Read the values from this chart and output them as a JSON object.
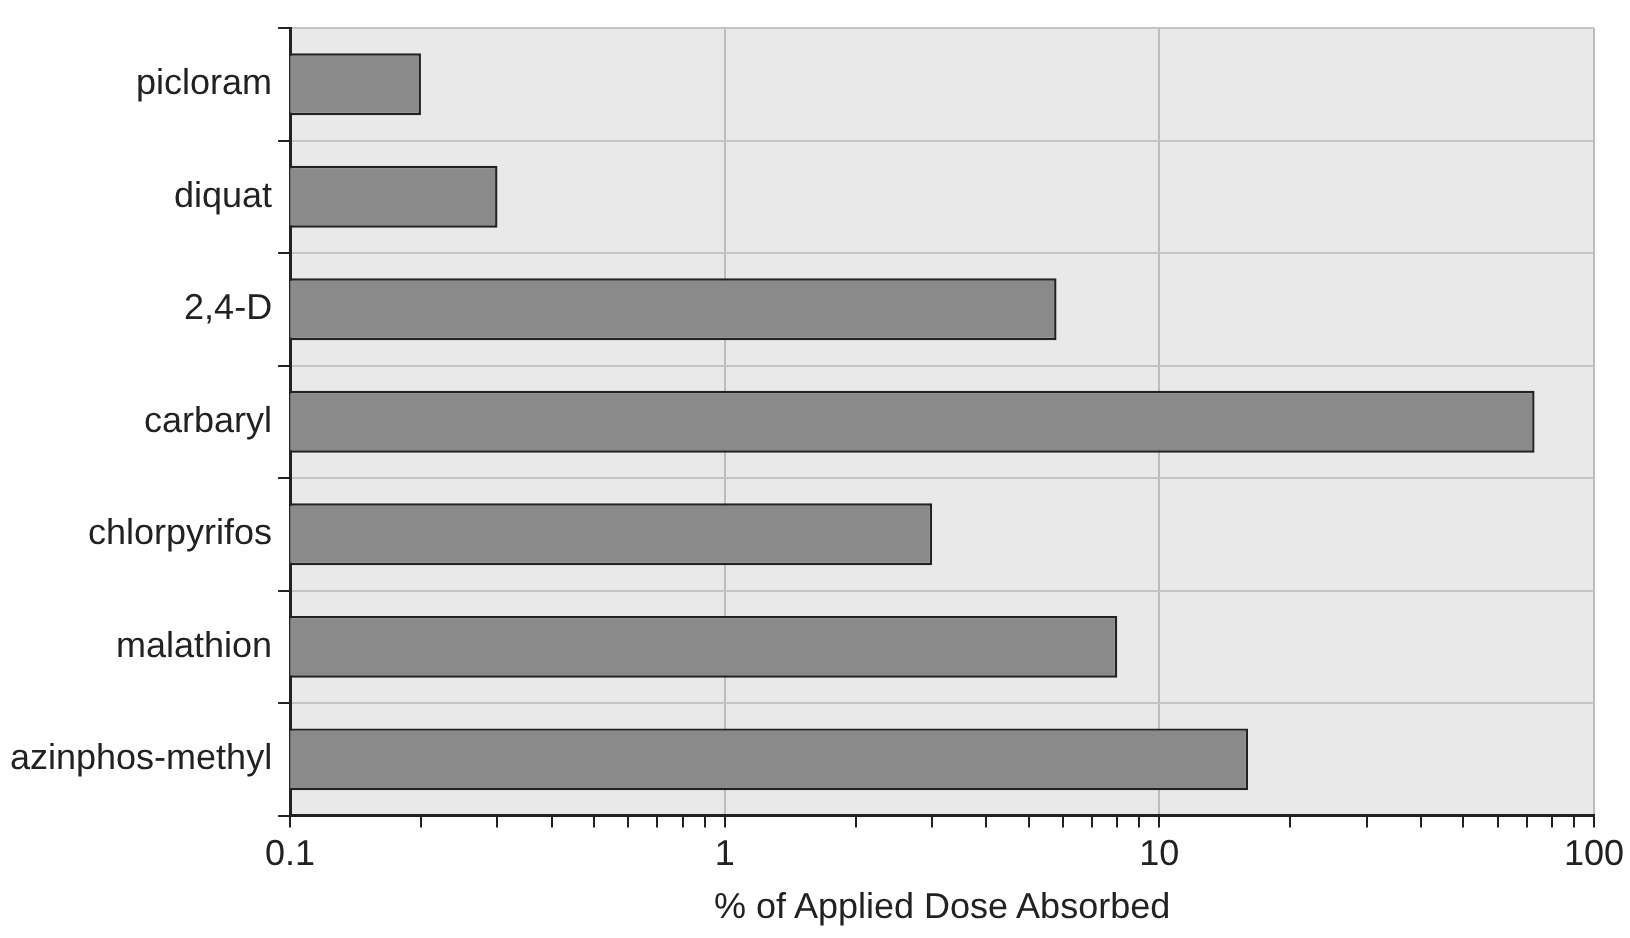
{
  "chart_data": {
    "type": "bar",
    "orientation": "horizontal",
    "xlabel": "% of Applied Dose Absorbed",
    "categories": [
      "picloram",
      "diquat",
      "2,4-D",
      "carbaryl",
      "chlorpyrifos",
      "malathion",
      "azinphos-methyl"
    ],
    "values": [
      0.2,
      0.3,
      5.8,
      73,
      3,
      8,
      16
    ],
    "color": "#8a8a8a",
    "log": "x",
    "xlim": [
      0.1,
      100
    ],
    "xticks": [
      0.1,
      {
        "value": 0.2,
        "label": null
      },
      {
        "value": 0.3,
        "label": null
      },
      {
        "value": 0.4,
        "label": null
      },
      {
        "value": 0.5,
        "label": null
      },
      {
        "value": 0.6,
        "label": null
      },
      {
        "value": 0.7,
        "label": null
      },
      {
        "value": 0.8,
        "label": null
      },
      {
        "value": 0.9,
        "label": null
      },
      1,
      {
        "value": 2,
        "label": null
      },
      {
        "value": 3,
        "label": null
      },
      {
        "value": 4,
        "label": null
      },
      {
        "value": 5,
        "label": null
      },
      {
        "value": 6,
        "label": null
      },
      {
        "value": 7,
        "label": null
      },
      {
        "value": 8,
        "label": null
      },
      {
        "value": 9,
        "label": null
      },
      10,
      {
        "value": 20,
        "label": null
      },
      {
        "value": 30,
        "label": null
      },
      {
        "value": 40,
        "label": null
      },
      {
        "value": 50,
        "label": null
      },
      {
        "value": 60,
        "label": null
      },
      {
        "value": 70,
        "label": null
      },
      {
        "value": 80,
        "label": null
      },
      {
        "value": 90,
        "label": null
      },
      100
    ],
    "grid": true
  }
}
